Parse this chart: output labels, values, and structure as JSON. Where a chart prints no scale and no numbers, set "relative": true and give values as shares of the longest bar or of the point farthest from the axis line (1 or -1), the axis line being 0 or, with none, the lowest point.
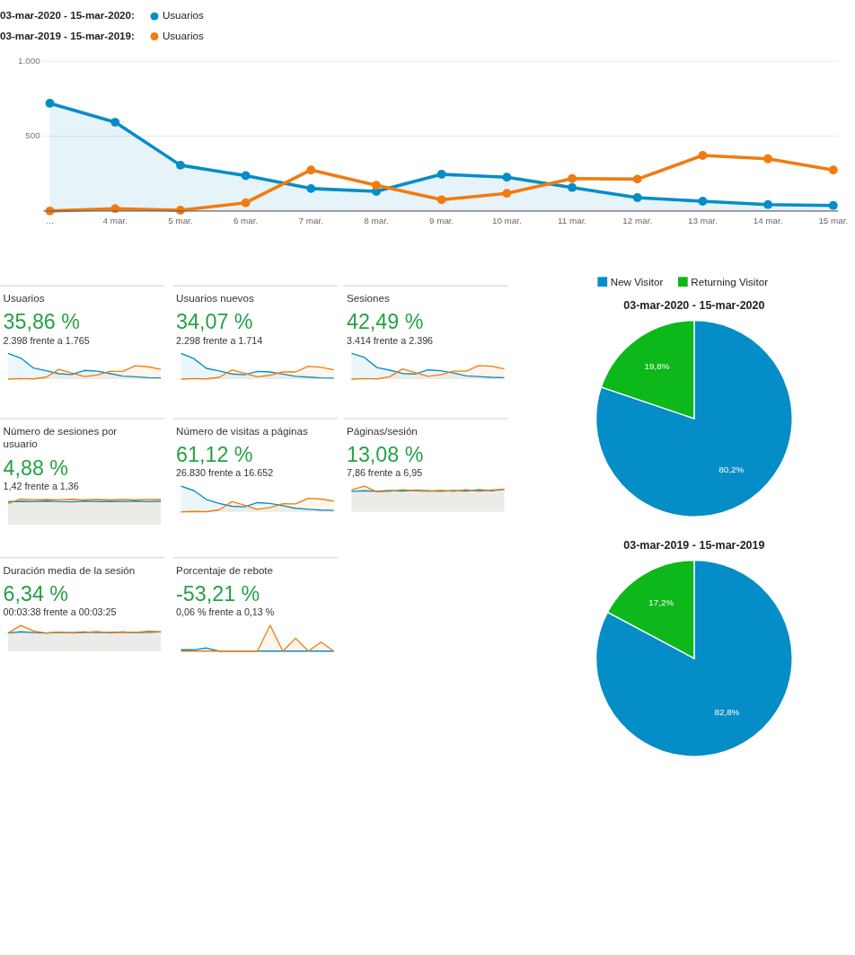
{
  "chart_data": [
    {
      "type": "line",
      "categories": [
        "…",
        "4 mar.",
        "5 mar.",
        "6 mar.",
        "7 mar.",
        "8 mar.",
        "9 mar.",
        "10 mar.",
        "11 mar.",
        "12 mar.",
        "13 mar.",
        "14 mar.",
        "15 mar."
      ],
      "ylim": [
        0,
        1000
      ],
      "yticks": [
        500,
        {
          "value": 1000,
          "label": "1.000"
        }
      ],
      "grid": "y",
      "marker": "circle",
      "legend": "top left",
      "annotations": [
        "03-mar-2020 - 15-mar-2020:",
        "03-mar-2019 - 15-mar-2019:"
      ],
      "series": [
        {
          "name": "Usuarios",
          "type": "area",
          "color": "#058dc7",
          "values": [
            720,
            593,
            306,
            236,
            150,
            131,
            245,
            226,
            157,
            89,
            65,
            43,
            37
          ]
        },
        {
          "name": "Usuarios",
          "type": "line",
          "color": "#f07c0f",
          "values": [
            0,
            16,
            5,
            55,
            274,
            172,
            75,
            118,
            217,
            213,
            371,
            349,
            274
          ]
        }
      ]
    },
    {
      "type": "pie",
      "title": "03-mar-2020 - 15-mar-2020",
      "categories": [
        "New Visitor",
        "Returning Visitor"
      ],
      "values": [
        80.2,
        19.8
      ],
      "value_labels": [
        "80,2%",
        "19,8%"
      ],
      "colors": [
        "#058dc7",
        "#0cb81a"
      ],
      "legend": "top"
    },
    {
      "type": "pie",
      "title": "03-mar-2019 - 15-mar-2019",
      "categories": [
        null,
        null
      ],
      "values": [
        82.8,
        17.2
      ],
      "value_labels": [
        "82,8%",
        "17,2%"
      ],
      "colors": [
        "#058dc7",
        "#0cb81a"
      ]
    },
    {
      "type": "line",
      "relative": true,
      "title": "Usuarios",
      "annotations": [
        "35,86 %",
        "2.398 frente a 1.765"
      ],
      "categories": [
        null,
        null,
        null,
        null,
        null,
        null,
        null,
        null,
        null,
        null,
        null,
        null,
        null
      ],
      "series": [
        {
          "type": "area",
          "color": "#058dc7",
          "values": [
            1,
            0.82,
            0.43,
            0.33,
            0.21,
            0.18,
            0.34,
            0.31,
            0.22,
            0.12,
            0.09,
            0.06,
            0.05
          ]
        },
        {
          "type": "area",
          "color": "#f07c0f",
          "values": [
            0,
            0.02,
            0.01,
            0.08,
            0.38,
            0.24,
            0.1,
            0.16,
            0.3,
            0.3,
            0.52,
            0.48,
            0.38
          ]
        }
      ]
    },
    {
      "type": "line",
      "relative": true,
      "title": "Usuarios nuevos",
      "annotations": [
        "34,07 %",
        "2.298 frente a 1.714"
      ],
      "categories": [
        null,
        null,
        null,
        null,
        null,
        null,
        null,
        null,
        null,
        null,
        null,
        null,
        null
      ],
      "series": [
        {
          "type": "area",
          "color": "#058dc7",
          "values": [
            1,
            0.8,
            0.42,
            0.32,
            0.2,
            0.17,
            0.3,
            0.28,
            0.2,
            0.11,
            0.08,
            0.05,
            0.04
          ]
        },
        {
          "type": "area",
          "color": "#f07c0f",
          "values": [
            0,
            0.02,
            0.01,
            0.07,
            0.36,
            0.22,
            0.09,
            0.15,
            0.28,
            0.28,
            0.5,
            0.46,
            0.36
          ]
        }
      ]
    },
    {
      "type": "line",
      "relative": true,
      "title": "Sesiones",
      "annotations": [
        "42,49 %",
        "3.414 frente a 2.396"
      ],
      "categories": [
        null,
        null,
        null,
        null,
        null,
        null,
        null,
        null,
        null,
        null,
        null,
        null,
        null
      ],
      "series": [
        {
          "type": "area",
          "color": "#058dc7",
          "values": [
            1,
            0.85,
            0.45,
            0.35,
            0.22,
            0.2,
            0.36,
            0.33,
            0.24,
            0.13,
            0.1,
            0.07,
            0.06
          ]
        },
        {
          "type": "area",
          "color": "#f07c0f",
          "values": [
            0,
            0.02,
            0.01,
            0.09,
            0.4,
            0.26,
            0.11,
            0.17,
            0.31,
            0.31,
            0.53,
            0.5,
            0.4
          ]
        }
      ]
    },
    {
      "type": "line",
      "relative": true,
      "title": "Número de sesiones por usuario",
      "annotations": [
        "4,88 %",
        "1,42 frente a 1,36"
      ],
      "categories": [
        null,
        null,
        null,
        null,
        null,
        null,
        null,
        null,
        null,
        null,
        null,
        null,
        null
      ],
      "series": [
        {
          "type": "area",
          "color": "#058dc7",
          "values": [
            0.9,
            0.91,
            0.9,
            0.92,
            0.9,
            0.89,
            0.92,
            0.9,
            0.91,
            0.9,
            0.92,
            0.9,
            0.91
          ]
        },
        {
          "type": "area",
          "color": "#f07c0f",
          "values": [
            0.82,
            1,
            0.97,
            0.98,
            0.97,
            0.99,
            0.97,
            0.98,
            0.97,
            0.98,
            0.97,
            0.98,
            0.98
          ]
        }
      ]
    },
    {
      "type": "line",
      "relative": true,
      "title": "Número de visitas a páginas",
      "annotations": [
        "61,12 %",
        "26.830 frente a 16.652"
      ],
      "categories": [
        null,
        null,
        null,
        null,
        null,
        null,
        null,
        null,
        null,
        null,
        null,
        null,
        null
      ],
      "series": [
        {
          "type": "area",
          "color": "#058dc7",
          "values": [
            1,
            0.83,
            0.48,
            0.33,
            0.22,
            0.2,
            0.36,
            0.33,
            0.24,
            0.14,
            0.1,
            0.07,
            0.06
          ]
        },
        {
          "type": "area",
          "color": "#f07c0f",
          "values": [
            0,
            0.02,
            0.01,
            0.08,
            0.4,
            0.26,
            0.1,
            0.17,
            0.32,
            0.31,
            0.53,
            0.5,
            0.42
          ]
        }
      ]
    },
    {
      "type": "line",
      "relative": true,
      "title": "Páginas/sesión",
      "annotations": [
        "13,08 %",
        "7,86 frente a 6,95"
      ],
      "categories": [
        null,
        null,
        null,
        null,
        null,
        null,
        null,
        null,
        null,
        null,
        null,
        null,
        null
      ],
      "series": [
        {
          "type": "area",
          "color": "#058dc7",
          "values": [
            0.8,
            0.82,
            0.8,
            0.83,
            0.81,
            0.84,
            0.82,
            0.8,
            0.83,
            0.81,
            0.86,
            0.82,
            0.88
          ]
        },
        {
          "type": "area",
          "color": "#f07c0f",
          "values": [
            0.85,
            1,
            0.78,
            0.8,
            0.86,
            0.82,
            0.8,
            0.84,
            0.8,
            0.86,
            0.8,
            0.85,
            0.88
          ]
        }
      ]
    },
    {
      "type": "line",
      "relative": true,
      "title": "Duración media de la sesión",
      "annotations": [
        "6,34 %",
        "00:03:38 frente a 00:03:25"
      ],
      "categories": [
        null,
        null,
        null,
        null,
        null,
        null,
        null,
        null,
        null,
        null,
        null,
        null,
        null
      ],
      "series": [
        {
          "type": "area",
          "color": "#058dc7",
          "values": [
            0.7,
            0.75,
            0.72,
            0.7,
            0.73,
            0.72,
            0.74,
            0.72,
            0.73,
            0.74,
            0.72,
            0.73,
            0.75
          ]
        },
        {
          "type": "area",
          "color": "#f07c0f",
          "values": [
            0.7,
            1,
            0.78,
            0.7,
            0.74,
            0.7,
            0.72,
            0.76,
            0.7,
            0.74,
            0.72,
            0.78,
            0.74
          ]
        }
      ]
    },
    {
      "type": "line",
      "relative": true,
      "title": "Porcentaje de rebote",
      "annotations": [
        "-53,21 %",
        "0,06 % frente a 0,13 %"
      ],
      "categories": [
        null,
        null,
        null,
        null,
        null,
        null,
        null,
        null,
        null,
        null,
        null,
        null,
        null
      ],
      "series": [
        {
          "type": "area",
          "color": "#058dc7",
          "values": [
            0.05,
            0.05,
            0.12,
            0,
            0,
            0,
            0,
            0,
            0,
            0,
            0,
            0,
            0
          ]
        },
        {
          "type": "area",
          "color": "#f07c0f",
          "values": [
            0,
            0,
            0,
            0,
            0,
            0,
            0,
            1,
            0,
            0.5,
            0,
            0.35,
            0
          ]
        }
      ]
    }
  ]
}
